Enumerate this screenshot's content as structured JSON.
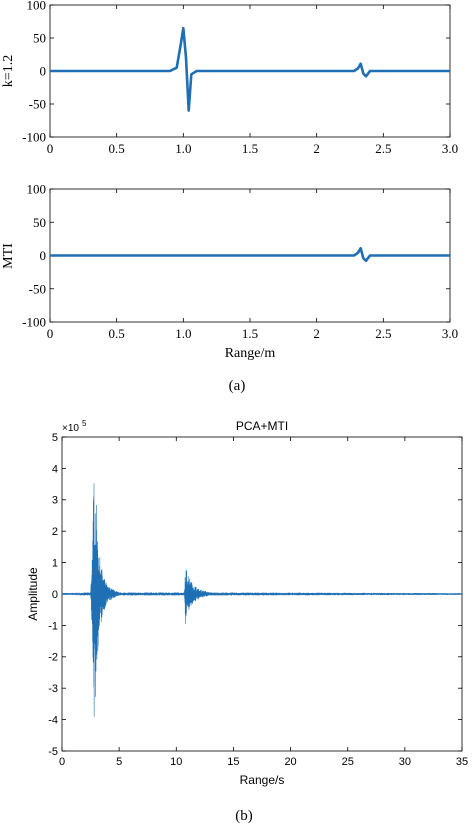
{
  "colors": {
    "series": "#1f6fb4",
    "axis": "#000000",
    "background": "#ffffff"
  },
  "figure_a": {
    "caption": "(a)",
    "xlabel": "Range/m",
    "top": {
      "ylabel": "k=1.2"
    },
    "bottom": {
      "ylabel": "MTI"
    }
  },
  "figure_b": {
    "caption": "(b)",
    "title": "PCA+MTI",
    "xlabel": "Range/s",
    "ylabel": "Amplitude",
    "exponent_base": "×10",
    "exponent_power": "5"
  },
  "chart_data": [
    {
      "type": "line",
      "panel": "a-top",
      "ylabel": "k=1.2",
      "xlim": [
        0,
        3.0
      ],
      "ylim": [
        -100,
        100
      ],
      "xticks": [
        "0",
        "0.5",
        "1.0",
        "1.5",
        "2",
        "2.5",
        "3.0"
      ],
      "yticks": [
        "100",
        "50",
        "0",
        "-50",
        "-100"
      ],
      "series": [
        {
          "x": [
            0,
            0.9,
            0.95,
            0.98,
            1.0,
            1.02,
            1.04,
            1.06,
            1.1,
            2.28,
            2.31,
            2.33,
            2.35,
            2.37,
            2.4,
            3.0
          ],
          "y": [
            0,
            0,
            5,
            40,
            65,
            20,
            -60,
            -5,
            0,
            0,
            4,
            11,
            -4,
            -8,
            0,
            0
          ]
        }
      ]
    },
    {
      "type": "line",
      "panel": "a-bottom",
      "ylabel": "MTI",
      "xlabel": "Range/m",
      "xlim": [
        0,
        3.0
      ],
      "ylim": [
        -100,
        100
      ],
      "xticks": [
        "0",
        "0.5",
        "1.0",
        "1.5",
        "2",
        "2.5",
        "3.0"
      ],
      "yticks": [
        "100",
        "50",
        "0",
        "-50",
        "-100"
      ],
      "series": [
        {
          "x": [
            0,
            2.28,
            2.31,
            2.33,
            2.35,
            2.37,
            2.4,
            3.0
          ],
          "y": [
            0,
            0,
            4,
            11,
            -4,
            -8,
            0,
            0
          ]
        }
      ]
    },
    {
      "type": "line",
      "panel": "b",
      "title": "PCA+MTI",
      "xlabel": "Range/s",
      "ylabel": "Amplitude",
      "xlim": [
        0,
        35
      ],
      "ylim": [
        -5,
        5
      ],
      "y_multiplier": "×10^5",
      "xticks": [
        "0",
        "5",
        "10",
        "15",
        "20",
        "25",
        "30",
        "35"
      ],
      "yticks": [
        "5",
        "4",
        "3",
        "2",
        "1",
        "0",
        "-1",
        "-2",
        "-3",
        "-4",
        "-5"
      ],
      "series": [
        {
          "x": [
            0,
            2.5,
            2.7,
            2.8,
            2.9,
            3.0,
            3.1,
            3.3,
            3.6,
            4.0,
            5.0,
            10.7,
            10.8,
            11.0,
            11.4,
            12.0,
            13.0,
            35
          ],
          "y_envelope": [
            0.03,
            0.05,
            2.0,
            4.3,
            3.5,
            3.0,
            2.0,
            1.2,
            0.6,
            0.25,
            0.05,
            0.05,
            1.0,
            0.6,
            0.35,
            0.15,
            0.05,
            0.03
          ]
        }
      ]
    }
  ]
}
